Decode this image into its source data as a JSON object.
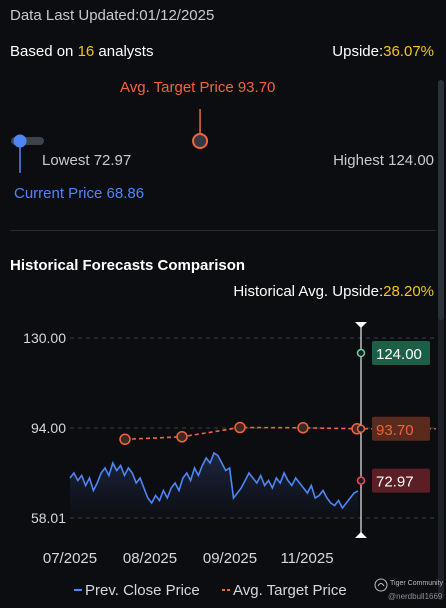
{
  "header": {
    "updated_label": "Data Last Updated:",
    "updated_date": "01/12/2025"
  },
  "summary": {
    "based_prefix": "Based on ",
    "analyst_count": "16",
    "based_suffix": " analysts",
    "upside_label": "Upside:",
    "upside_value": "36.07%"
  },
  "gauge": {
    "avg_target_label": "Avg. Target Price 93.70",
    "lowest_label": "Lowest 72.97",
    "highest_label": "Highest 124.00",
    "current_label": "Current Price 68.86",
    "low": 72.97,
    "high": 124.0,
    "avg_target": 93.7,
    "current": 68.86
  },
  "section": {
    "title": "Historical Forecasts Comparison",
    "hist_upside_label": "Historical Avg. Upside:",
    "hist_upside_value": "28.20%"
  },
  "legend": {
    "close_label": "Prev. Close Price",
    "target_label": "Avg. Target Price"
  },
  "watermark": {
    "brand": "Tiger Community",
    "user": "@nerdbull1669"
  },
  "colors": {
    "accent_yellow": "#f5c518",
    "target_orange": "#f0653d",
    "close_blue": "#4f86f7",
    "gauge_low": "#f2455a",
    "gauge_mid": "#f8b52c",
    "gauge_high": "#3fc270",
    "high_badge": "#1e5e46",
    "target_badge": "#5a2a1c",
    "low_badge": "#5a1e24"
  },
  "chart_data": {
    "type": "line",
    "y_ticks": [
      "130.00",
      "94.00",
      "58.01"
    ],
    "ylim": [
      58.01,
      130.0
    ],
    "x_ticks": [
      "07/2025",
      "08/2025",
      "09/2025",
      "11/2025"
    ],
    "series": [
      {
        "name": "Prev. Close Price",
        "type": "area",
        "values": [
          74,
          76,
          73,
          75,
          71,
          74,
          69,
          72,
          76,
          78,
          75,
          80,
          77,
          79,
          75,
          78,
          76,
          72,
          74,
          70,
          66,
          64,
          67,
          65,
          69,
          66,
          70,
          72,
          69,
          74,
          76,
          73,
          78,
          75,
          79,
          82,
          80,
          84,
          83,
          80,
          77,
          78,
          66,
          68,
          70,
          73,
          76,
          74,
          72,
          75,
          71,
          73,
          70,
          74,
          72,
          76,
          73,
          71,
          74,
          72,
          70,
          68,
          71,
          66,
          67,
          69,
          66,
          64,
          63,
          65,
          62,
          64,
          66,
          68,
          68.86
        ]
      },
      {
        "name": "Avg. Target Price",
        "type": "dashed",
        "points": [
          [
            0,
            89.5
          ],
          [
            1,
            90.5
          ],
          [
            2,
            94.2
          ],
          [
            3,
            94.1
          ],
          [
            4,
            93.7
          ]
        ]
      }
    ],
    "annotations": {
      "forecast_high": "124.00",
      "forecast_avg": "93.70",
      "forecast_low": "72.97",
      "high": 124.0,
      "avg": 93.7,
      "low": 72.97
    }
  }
}
